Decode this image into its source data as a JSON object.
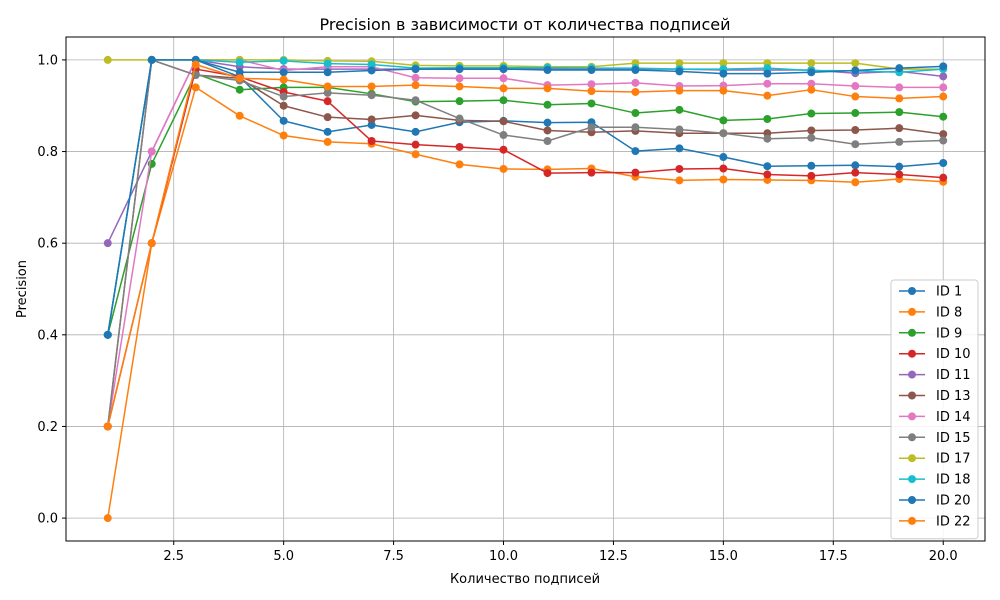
{
  "chart_data": {
    "type": "line",
    "title": "Precision в зависимости от количества подписей",
    "xlabel": "Количество подписей",
    "ylabel": "Precision",
    "xlim": [
      0.05,
      20.95
    ],
    "ylim": [
      -0.05,
      1.05
    ],
    "xticks": [
      2.5,
      5.0,
      7.5,
      10.0,
      12.5,
      15.0,
      17.5,
      20.0
    ],
    "xtick_labels": [
      "2.5",
      "5.0",
      "7.5",
      "10.0",
      "12.5",
      "15.0",
      "17.5",
      "20.0"
    ],
    "yticks": [
      0.0,
      0.2,
      0.4,
      0.6,
      0.8,
      1.0
    ],
    "ytick_labels": [
      "0.0",
      "0.2",
      "0.4",
      "0.6",
      "0.8",
      "1.0"
    ],
    "grid": true,
    "legend_position": "lower-right",
    "x": [
      1,
      2,
      3,
      4,
      5,
      6,
      7,
      8,
      9,
      10,
      11,
      12,
      13,
      14,
      15,
      16,
      17,
      18,
      19,
      20
    ],
    "series": [
      {
        "name": "ID 1",
        "color": "#1f77b4",
        "values": [
          0.4,
          1.0,
          1.0,
          0.963,
          0.867,
          0.843,
          0.858,
          0.843,
          0.864,
          0.867,
          0.863,
          0.864,
          0.801,
          0.807,
          0.788,
          0.768,
          0.769,
          0.77,
          0.767,
          0.775
        ]
      },
      {
        "name": "ID 8",
        "color": "#ff7f0e",
        "values": [
          0.0,
          0.6,
          0.94,
          0.878,
          0.835,
          0.821,
          0.817,
          0.794,
          0.772,
          0.762,
          0.761,
          0.763,
          0.745,
          0.737,
          0.739,
          0.738,
          0.737,
          0.733,
          0.74,
          0.734
        ]
      },
      {
        "name": "ID 9",
        "color": "#2ca02c",
        "values": [
          0.4,
          0.773,
          0.97,
          0.935,
          0.94,
          0.94,
          0.926,
          0.909,
          0.91,
          0.912,
          0.902,
          0.905,
          0.884,
          0.891,
          0.868,
          0.871,
          0.883,
          0.884,
          0.886,
          0.876
        ]
      },
      {
        "name": "ID 10",
        "color": "#d62728",
        "values": [
          0.2,
          0.6,
          0.98,
          0.963,
          0.93,
          0.91,
          0.823,
          0.815,
          0.81,
          0.804,
          0.753,
          0.754,
          0.754,
          0.762,
          0.763,
          0.75,
          0.747,
          0.754,
          0.75,
          0.743
        ]
      },
      {
        "name": "ID 11",
        "color": "#9467bd",
        "values": [
          0.6,
          0.8,
          1.0,
          0.985,
          0.98,
          0.98,
          0.98,
          0.98,
          0.98,
          0.98,
          0.98,
          0.98,
          0.98,
          0.98,
          0.978,
          0.978,
          0.978,
          0.971,
          0.975,
          0.964
        ]
      },
      {
        "name": "ID 13",
        "color": "#8c564b",
        "values": [
          0.2,
          1.0,
          0.967,
          0.96,
          0.9,
          0.875,
          0.87,
          0.879,
          0.868,
          0.866,
          0.846,
          0.842,
          0.845,
          0.84,
          0.84,
          0.84,
          0.846,
          0.847,
          0.851,
          0.838
        ]
      },
      {
        "name": "ID 14",
        "color": "#e377c2",
        "values": [
          0.2,
          0.8,
          1.0,
          1.0,
          0.977,
          0.985,
          0.985,
          0.961,
          0.96,
          0.96,
          0.945,
          0.947,
          0.95,
          0.943,
          0.944,
          0.948,
          0.948,
          0.943,
          0.94,
          0.94
        ]
      },
      {
        "name": "ID 15",
        "color": "#7f7f7f",
        "values": [
          0.2,
          1.0,
          0.967,
          0.955,
          0.92,
          0.928,
          0.923,
          0.912,
          0.872,
          0.836,
          0.823,
          0.853,
          0.853,
          0.848,
          0.84,
          0.828,
          0.83,
          0.816,
          0.821,
          0.824
        ]
      },
      {
        "name": "ID 17",
        "color": "#bcbd22",
        "values": [
          1.0,
          1.0,
          1.0,
          1.0,
          1.0,
          0.998,
          0.997,
          0.988,
          0.987,
          0.987,
          0.985,
          0.985,
          0.993,
          0.993,
          0.993,
          0.993,
          0.993,
          0.993,
          0.98,
          0.98
        ]
      },
      {
        "name": "ID 18",
        "color": "#17becf",
        "values": [
          0.4,
          1.0,
          1.0,
          0.995,
          0.998,
          0.992,
          0.99,
          0.982,
          0.983,
          0.983,
          0.983,
          0.982,
          0.982,
          0.98,
          0.98,
          0.982,
          0.977,
          0.976,
          0.973,
          0.98
        ]
      },
      {
        "name": "ID 20",
        "color": "#1f77b4",
        "values": [
          0.4,
          1.0,
          1.0,
          0.973,
          0.973,
          0.973,
          0.977,
          0.98,
          0.98,
          0.98,
          0.978,
          0.978,
          0.978,
          0.975,
          0.97,
          0.97,
          0.973,
          0.977,
          0.982,
          0.986
        ]
      },
      {
        "name": "ID 22",
        "color": "#ff7f0e",
        "values": [
          0.2,
          0.6,
          0.99,
          0.96,
          0.957,
          0.942,
          0.942,
          0.945,
          0.942,
          0.938,
          0.938,
          0.932,
          0.93,
          0.933,
          0.933,
          0.922,
          0.935,
          0.92,
          0.916,
          0.92
        ]
      }
    ]
  }
}
